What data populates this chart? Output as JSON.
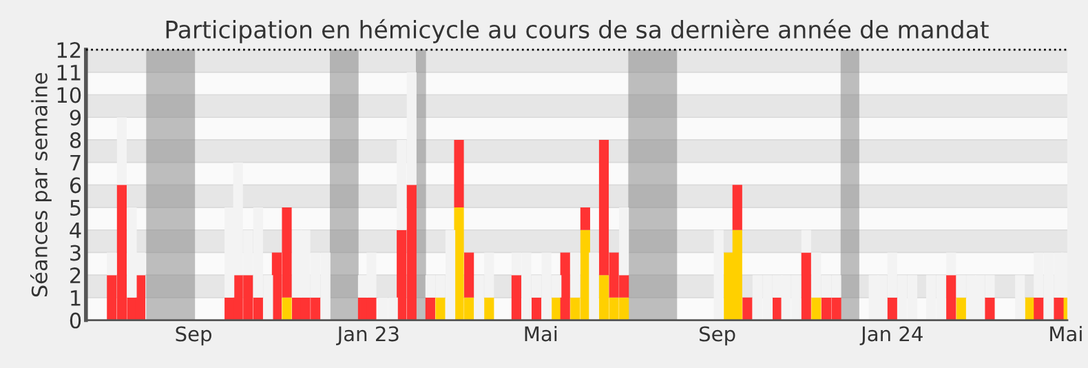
{
  "chart_data": {
    "type": "bar",
    "stacked": true,
    "title": "Participation en hémicycle au cours de sa dernière année de mandat",
    "ylabel": "Séances par semaine",
    "x": [
      "2022-07-06",
      "2022-07-13",
      "2022-07-20",
      "2022-07-26",
      "2022-09-26",
      "2022-10-02",
      "2022-10-09",
      "2022-10-16",
      "2022-10-23",
      "2022-10-29",
      "2022-11-05",
      "2022-11-12",
      "2022-11-18",
      "2022-11-25",
      "2022-12-02",
      "2022-12-28",
      "2023-01-03",
      "2023-01-11",
      "2023-01-18",
      "2023-01-24",
      "2023-01-31",
      "2023-02-13",
      "2023-02-20",
      "2023-02-27",
      "2023-03-05",
      "2023-03-12",
      "2023-03-19",
      "2023-03-26",
      "2023-04-14",
      "2023-04-21",
      "2023-04-28",
      "2023-05-05",
      "2023-05-12",
      "2023-05-18",
      "2023-05-25",
      "2023-06-01",
      "2023-06-07",
      "2023-06-14",
      "2023-06-21",
      "2023-06-28",
      "2023-09-02",
      "2023-09-09",
      "2023-09-15",
      "2023-09-22",
      "2023-09-29",
      "2023-10-06",
      "2023-10-13",
      "2023-10-19",
      "2023-10-26",
      "2023-11-02",
      "2023-11-09",
      "2023-11-16",
      "2023-11-23",
      "2023-12-19",
      "2023-12-25",
      "2024-01-01",
      "2024-01-08",
      "2024-01-15",
      "2024-01-28",
      "2024-02-04",
      "2024-02-11",
      "2024-02-18",
      "2024-02-25",
      "2024-03-02",
      "2024-03-09",
      "2024-03-30",
      "2024-04-06",
      "2024-04-12",
      "2024-04-19",
      "2024-04-26",
      "2024-05-01"
    ],
    "series": [
      {
        "color": "#ffd000",
        "values": [
          0,
          0,
          0,
          0,
          0,
          0,
          0,
          0,
          0,
          0,
          1,
          0,
          0,
          0,
          0,
          0,
          0,
          0,
          0,
          0,
          0,
          0,
          1,
          0,
          5,
          1,
          0,
          1,
          0,
          0,
          0,
          0,
          1,
          0,
          1,
          4,
          0,
          2,
          1,
          1,
          0,
          3,
          4,
          0,
          0,
          0,
          0,
          0,
          0,
          0,
          1,
          0,
          0,
          0,
          0,
          0,
          0,
          0,
          0,
          0,
          0,
          1,
          0,
          0,
          0,
          0,
          1,
          0,
          0,
          0,
          1
        ]
      },
      {
        "color": "#ff3333",
        "values": [
          2,
          6,
          1,
          2,
          1,
          2,
          2,
          1,
          0,
          3,
          4,
          1,
          1,
          1,
          0,
          1,
          1,
          0,
          0,
          4,
          6,
          1,
          0,
          0,
          3,
          2,
          0,
          0,
          2,
          0,
          1,
          0,
          0,
          3,
          0,
          1,
          0,
          6,
          2,
          1,
          0,
          0,
          2,
          1,
          0,
          0,
          1,
          0,
          0,
          3,
          0,
          1,
          1,
          0,
          0,
          1,
          0,
          0,
          0,
          0,
          2,
          0,
          0,
          0,
          1,
          0,
          0,
          1,
          0,
          1,
          0
        ]
      },
      {
        "color": "#f3f3f3",
        "values": [
          1,
          3,
          4,
          1,
          4,
          5,
          2,
          4,
          2,
          0,
          0,
          3,
          3,
          2,
          3,
          1,
          2,
          1,
          1,
          4,
          5,
          1,
          1,
          4,
          0,
          0,
          2,
          2,
          1,
          3,
          1,
          3,
          1,
          0,
          2,
          0,
          3,
          0,
          0,
          3,
          4,
          0,
          0,
          0,
          2,
          2,
          1,
          2,
          2,
          1,
          2,
          1,
          1,
          2,
          2,
          2,
          2,
          2,
          2,
          2,
          1,
          1,
          2,
          2,
          1,
          2,
          0,
          2,
          3,
          2,
          2
        ]
      }
    ],
    "xlim": [
      "2022-06-18",
      "2024-05-02"
    ],
    "xticks": [
      {
        "value": "2022-09-01",
        "label": "Sep"
      },
      {
        "value": "2023-01-01",
        "label": "Jan 23"
      },
      {
        "value": "2023-05-01",
        "label": "Mai"
      },
      {
        "value": "2023-09-01",
        "label": "Sep"
      },
      {
        "value": "2024-01-01",
        "label": "Jan 24"
      },
      {
        "value": "2024-05-01",
        "label": "Mai"
      }
    ],
    "grid": "y",
    "ylim": [
      0,
      12
    ],
    "yticks": [
      0,
      1,
      2,
      3,
      4,
      5,
      6,
      7,
      8,
      9,
      10,
      11,
      12
    ],
    "ref_lines": [
      {
        "axis": "y",
        "value": 12,
        "color": "#000000",
        "line_style": "dotted"
      }
    ],
    "bands": [
      {
        "axis": "x",
        "from": "2022-07-30",
        "to": "2022-09-02",
        "color": "#808080"
      },
      {
        "axis": "x",
        "from": "2022-12-05",
        "to": "2022-12-25",
        "color": "#808080"
      },
      {
        "axis": "x",
        "from": "2023-02-03",
        "to": "2023-02-10",
        "color": "#808080"
      },
      {
        "axis": "x",
        "from": "2023-07-01",
        "to": "2023-08-04",
        "color": "#808080"
      },
      {
        "axis": "x",
        "from": "2023-11-26",
        "to": "2023-12-09",
        "color": "#808080"
      }
    ]
  }
}
